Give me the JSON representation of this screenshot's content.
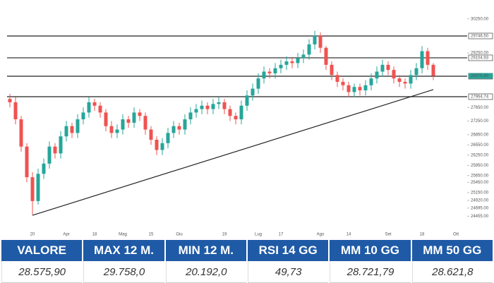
{
  "chart_data": {
    "type": "candlestick",
    "categories": [
      null,
      null,
      null,
      null,
      "20",
      null,
      null,
      null,
      null,
      null,
      "Apr",
      null,
      null,
      null,
      null,
      "18",
      null,
      null,
      null,
      null,
      "Mag",
      null,
      null,
      null,
      null,
      "15",
      null,
      null,
      null,
      null,
      "Giu",
      null,
      null,
      null,
      null,
      null,
      null,
      null,
      "19",
      null,
      null,
      null,
      null,
      null,
      "Lug",
      null,
      null,
      null,
      "17",
      null,
      null,
      null,
      null,
      null,
      null,
      "Ago",
      null,
      null,
      null,
      null,
      "14",
      null,
      null,
      null,
      null,
      null,
      null,
      "Set",
      null,
      null,
      null,
      null,
      null,
      "18",
      null,
      null,
      null,
      null,
      null,
      "Ott"
    ],
    "open": [
      27900,
      27800,
      27300,
      26500,
      25600,
      24900,
      25700,
      26000,
      26500,
      26300,
      26800,
      27100,
      26900,
      27300,
      27500,
      27800,
      27700,
      27500,
      27100,
      26900,
      27000,
      27300,
      27200,
      27500,
      27400,
      27000,
      26700,
      26400,
      26600,
      26900,
      27100,
      27000,
      27300,
      27500,
      27600,
      27700,
      27600,
      27750,
      27800,
      27600,
      27400,
      27300,
      27700,
      28000,
      28200,
      28500,
      28700,
      28650,
      28800,
      28900,
      29000,
      28950,
      29100,
      29200,
      29500,
      29750,
      29400,
      28900,
      28600,
      28400,
      28300,
      28100,
      28250,
      28150,
      28300,
      28500,
      28700,
      28900,
      28750,
      28500,
      28400,
      28350,
      28600,
      28800,
      29300,
      28900,
      null,
      null,
      null,
      null
    ],
    "high": [
      28050,
      27950,
      27400,
      26600,
      25750,
      25850,
      26150,
      26650,
      26600,
      26950,
      27250,
      27200,
      27450,
      27650,
      27950,
      27900,
      27800,
      27600,
      27250,
      27150,
      27450,
      27400,
      27650,
      27600,
      27500,
      27100,
      26800,
      26750,
      27050,
      27250,
      27200,
      27450,
      27650,
      27750,
      27850,
      27800,
      27900,
      27950,
      27900,
      27700,
      27500,
      27850,
      28150,
      28350,
      28650,
      28850,
      28800,
      28950,
      29050,
      29150,
      29100,
      29250,
      29350,
      29650,
      29900,
      29850,
      29450,
      29000,
      28700,
      28500,
      28400,
      28350,
      28350,
      28450,
      28650,
      28850,
      29050,
      29000,
      28850,
      28600,
      28500,
      28750,
      28950,
      29450,
      29400,
      28950,
      null,
      null,
      null,
      null
    ],
    "low": [
      27650,
      27150,
      26350,
      25450,
      24500,
      24800,
      25550,
      25850,
      26150,
      26150,
      26650,
      26750,
      26750,
      27150,
      27350,
      27550,
      27350,
      26950,
      26750,
      26750,
      26850,
      27050,
      27050,
      27250,
      26850,
      26550,
      26250,
      26250,
      26450,
      26750,
      26850,
      26850,
      27150,
      27350,
      27450,
      27450,
      27450,
      27600,
      27450,
      27250,
      27150,
      27150,
      27550,
      27850,
      28050,
      28350,
      28500,
      28500,
      28650,
      28750,
      28800,
      28800,
      28950,
      29050,
      29350,
      29250,
      28750,
      28450,
      28250,
      28150,
      27950,
      27950,
      28000,
      28000,
      28150,
      28350,
      28550,
      28600,
      28350,
      28250,
      28200,
      28200,
      28450,
      28650,
      28750,
      28450,
      null,
      null,
      null,
      null
    ],
    "close": [
      27800,
      27300,
      26500,
      25600,
      24900,
      25700,
      26000,
      26500,
      26300,
      26800,
      27100,
      26900,
      27300,
      27500,
      27800,
      27700,
      27500,
      27100,
      26900,
      27000,
      27300,
      27200,
      27500,
      27400,
      27000,
      26700,
      26400,
      26600,
      26900,
      27100,
      27000,
      27300,
      27500,
      27600,
      27700,
      27600,
      27750,
      27800,
      27600,
      27400,
      27300,
      27700,
      28000,
      28200,
      28500,
      28700,
      28650,
      28800,
      28900,
      29000,
      28950,
      29100,
      29200,
      29500,
      29750,
      29400,
      28900,
      28600,
      28400,
      28300,
      28100,
      28250,
      28150,
      28300,
      28500,
      28700,
      28900,
      28750,
      28500,
      28400,
      28350,
      28600,
      28800,
      29300,
      28900,
      28576,
      null,
      null,
      null,
      null
    ],
    "up_color": "#26a69a",
    "down_color": "#ef5350",
    "ylim": [
      23800,
      30347
    ],
    "yticks": [
      {
        "value": 30250,
        "label": "30250.00"
      },
      {
        "value": 29250,
        "label": "29250.00"
      },
      {
        "value": 27650,
        "label": "27650.00"
      },
      {
        "value": 27250,
        "label": "27250.00"
      },
      {
        "value": 26850,
        "label": "26850.00"
      },
      {
        "value": 26550,
        "label": "26550.00"
      },
      {
        "value": 26250,
        "label": "26250.00"
      },
      {
        "value": 25950,
        "label": "25950.00"
      },
      {
        "value": 25650,
        "label": "25650.00"
      },
      {
        "value": 25450,
        "label": "25450.00"
      },
      {
        "value": 25150,
        "label": "25150.00"
      },
      {
        "value": 24920,
        "label": "24920.00"
      },
      {
        "value": 24695,
        "label": "24695.00"
      },
      {
        "value": 24455,
        "label": "24455.00"
      }
    ],
    "levels": [
      {
        "value": 29746.5,
        "label": "29746.50"
      },
      {
        "value": 29104.93,
        "label": "29104.93"
      },
      {
        "value": 28565.44,
        "label": "28565.44"
      },
      {
        "value": 27964.74,
        "label": "27964.74"
      }
    ],
    "last": {
      "value": 28575.9,
      "label": "28575.90"
    },
    "trendline": {
      "x": [
        4,
        75
      ],
      "y": [
        24483,
        28172
      ]
    }
  },
  "table": {
    "header": [
      "VALORE",
      "MAX 12 M.",
      "MIN 12 M.",
      "RSI 14 GG",
      "MM 10 GG",
      "MM 50 GG"
    ],
    "rows": [
      [
        "28.575,90",
        "29.758,0",
        "20.192,0",
        "49,73",
        "28.721,79",
        "28.621,8"
      ]
    ]
  }
}
